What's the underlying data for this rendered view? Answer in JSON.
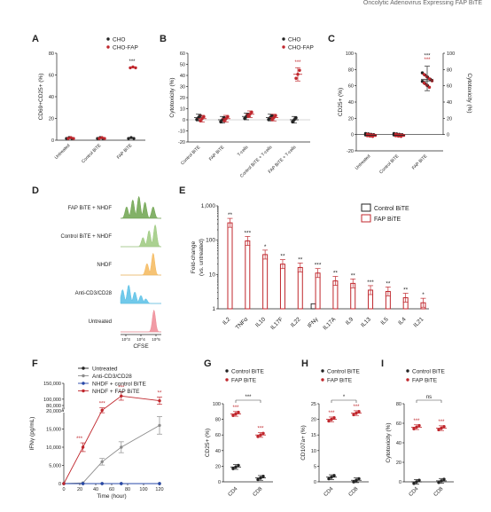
{
  "header_text": "Oncolytic Adenovirus Expressing FAP BiTE",
  "colors": {
    "black": "#222222",
    "red": "#c0272d",
    "grey": "#8c8c8c",
    "blue": "#2748a8",
    "green": "#6da34d",
    "lightgreen": "#9cc97e",
    "orange": "#f5b85c",
    "cyan": "#58c0e6",
    "pink": "#ef8a95"
  },
  "chart_data": [
    {
      "panel": "A",
      "type": "scatter",
      "ylabel": "CD69+CD25+ (%)",
      "ylim": [
        0,
        80
      ],
      "yticks": [
        0,
        20,
        40,
        60,
        80
      ],
      "categories": [
        "Untreated",
        "Control BiTE",
        "FAP BiTE"
      ],
      "legend": [
        "CHO",
        "CHO-FAP"
      ],
      "series": [
        {
          "name": "CHO",
          "values": [
            2,
            2,
            2
          ]
        },
        {
          "name": "CHO-FAP",
          "values": [
            2,
            2,
            67
          ]
        }
      ],
      "annotations": [
        {
          "category": "FAP BiTE",
          "text": "***"
        }
      ]
    },
    {
      "panel": "B",
      "type": "scatter",
      "ylabel": "Cytotoxicity (%)",
      "ylim": [
        -20,
        60
      ],
      "yticks": [
        -20,
        -10,
        0,
        10,
        20,
        30,
        40,
        50,
        60
      ],
      "categories": [
        "Control BiTE",
        "FAP BiTE",
        "T-cells",
        "Control BiTE + T-cells",
        "FAP BiTE + T-cells"
      ],
      "legend": [
        "CHO",
        "CHO-FAP"
      ],
      "series": [
        {
          "name": "CHO",
          "values": [
            2,
            0,
            3,
            2,
            0
          ]
        },
        {
          "name": "CHO-FAP",
          "values": [
            1,
            1,
            5,
            2,
            41
          ]
        }
      ],
      "annotations": [
        {
          "category": "FAP BiTE + T-cells",
          "text": "***"
        }
      ]
    },
    {
      "panel": "C",
      "type": "scatter",
      "ylabel": "CD25+ (%)",
      "ylabel2": "Cytotoxicity (%)",
      "ylim": [
        -20,
        100
      ],
      "yticks": [
        -20,
        0,
        20,
        40,
        60,
        80,
        100
      ],
      "yticks2": [
        0,
        20,
        40,
        60,
        80,
        100
      ],
      "categories": [
        "Untreated",
        "Control BiTE",
        "FAP BiTE"
      ],
      "series": [
        {
          "name": "CD25+",
          "values": [
            0,
            0,
            68
          ]
        },
        {
          "name": "Cytotoxicity",
          "values": [
            -1,
            -1,
            66
          ]
        }
      ],
      "annotations": [
        {
          "category": "FAP BiTE",
          "text": "***"
        },
        {
          "category": "FAP BiTE",
          "text": "***"
        }
      ]
    },
    {
      "panel": "D",
      "type": "histogram",
      "xlabel": "CFSE",
      "tracks": [
        "FAP BiTE + NHDF",
        "Control BiTE + NHDF",
        "NHDF",
        "Anti-CD3/CD28",
        "Untreated"
      ],
      "xticks": [
        "10^3",
        "10^4",
        "10^5"
      ]
    },
    {
      "panel": "E",
      "type": "bar",
      "ylabel": "Fold-change (vs. untreated)",
      "yscale": "log",
      "ylim": [
        1,
        1000
      ],
      "yticks": [
        "1",
        "10",
        "100",
        "1,000"
      ],
      "categories": [
        "IL2",
        "TNFα",
        "IL10",
        "IL17F",
        "IL22",
        "IFNγ",
        "IL17A",
        "IL9",
        "IL13",
        "IL5",
        "IL4",
        "IL21"
      ],
      "legend": [
        "Control BiTE",
        "FAP BiTE"
      ],
      "series": [
        {
          "name": "Control BiTE",
          "values": [
            1,
            1,
            1,
            1,
            1,
            1.4,
            1,
            1,
            1,
            1,
            1,
            1
          ]
        },
        {
          "name": "FAP BiTE",
          "values": [
            320,
            95,
            38,
            20,
            16,
            11,
            6.5,
            5.5,
            3.5,
            3.2,
            2.1,
            1.5
          ]
        }
      ],
      "annotations": [
        "**",
        "***",
        "*",
        "**",
        "**",
        "***",
        "**",
        "**",
        "***",
        "**",
        "**",
        "*"
      ]
    },
    {
      "panel": "F",
      "type": "line",
      "xlabel": "Time (hour)",
      "ylabel": "IFNγ (pg/mL)",
      "x": [
        0,
        24,
        48,
        72,
        120
      ],
      "xticks": [
        0,
        20,
        40,
        60,
        80,
        100,
        120
      ],
      "yticks": [
        "0",
        "5,000",
        "10,000",
        "15,000",
        "20,000",
        "80,000",
        "100,000",
        "150,000"
      ],
      "legend": [
        "Untreated",
        "Anti-CD3/CD28",
        "NHDF + control BiTE",
        "NHDF + FAP BiTE"
      ],
      "series": [
        {
          "name": "Untreated",
          "values": [
            0,
            0,
            0,
            0,
            0
          ]
        },
        {
          "name": "Anti-CD3/CD28",
          "values": [
            0,
            200,
            6000,
            10000,
            16000
          ]
        },
        {
          "name": "NHDF + control BiTE",
          "values": [
            0,
            0,
            0,
            0,
            0
          ]
        },
        {
          "name": "NHDF + FAP BiTE",
          "values": [
            0,
            10000,
            65000,
            110000,
            95000
          ]
        }
      ],
      "annotations": [
        "***",
        "***",
        "***",
        "**"
      ]
    },
    {
      "panel": "G",
      "type": "scatter",
      "ylabel": "CD25+ (%)",
      "ylim": [
        0,
        100
      ],
      "yticks": [
        0,
        20,
        40,
        60,
        80,
        100
      ],
      "categories": [
        "CD4",
        "CD8"
      ],
      "legend": [
        "Control BiTE",
        "FAP BiTE"
      ],
      "series": [
        {
          "name": "Control BiTE",
          "values": [
            19,
            5
          ]
        },
        {
          "name": "FAP BiTE",
          "values": [
            87,
            60
          ]
        }
      ],
      "annotations": [
        "***",
        "***",
        "***"
      ]
    },
    {
      "panel": "H",
      "type": "scatter",
      "ylabel": "CD107a+ (%)",
      "ylim": [
        0,
        25
      ],
      "yticks": [
        0,
        5,
        10,
        15,
        20,
        25
      ],
      "categories": [
        "CD4",
        "CD8"
      ],
      "legend": [
        "Control BiTE",
        "FAP BiTE"
      ],
      "series": [
        {
          "name": "Control BiTE",
          "values": [
            1.5,
            0.5
          ]
        },
        {
          "name": "FAP BiTE",
          "values": [
            20,
            22
          ]
        }
      ],
      "annotations": [
        "***",
        "***",
        "*"
      ]
    },
    {
      "panel": "I",
      "type": "scatter",
      "ylabel": "Cytotoxicity (%)",
      "ylim": [
        0,
        80
      ],
      "yticks": [
        0,
        20,
        40,
        60,
        80
      ],
      "categories": [
        "CD4",
        "CD8"
      ],
      "legend": [
        "Control BiTE",
        "FAP BiTE"
      ],
      "series": [
        {
          "name": "Control BiTE",
          "values": [
            0,
            1
          ]
        },
        {
          "name": "FAP BiTE",
          "values": [
            56,
            55
          ]
        }
      ],
      "annotations": [
        "***",
        "***",
        "ns"
      ]
    }
  ]
}
